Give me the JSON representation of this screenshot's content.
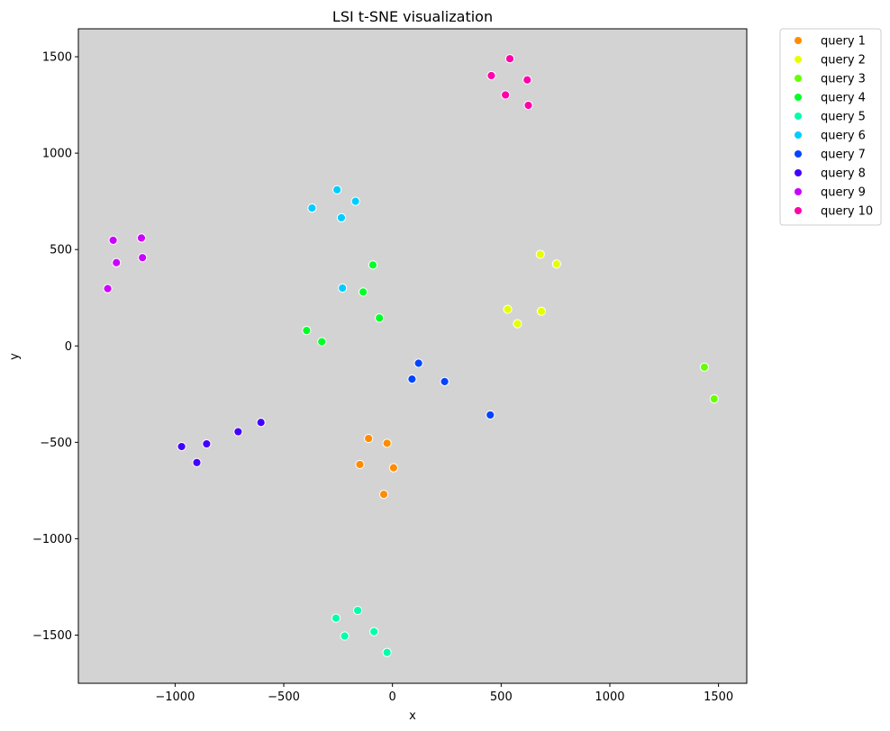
{
  "chart_data": {
    "type": "scatter",
    "title": "LSI t-SNE visualization",
    "xlabel": "x",
    "ylabel": "y",
    "xlim": [
      -1445,
      1630
    ],
    "ylim": [
      -1750,
      1645
    ],
    "xticks": [
      -1000,
      -500,
      0,
      500,
      1000,
      1500
    ],
    "yticks": [
      -1500,
      -1000,
      -500,
      0,
      500,
      1000,
      1500
    ],
    "xtick_labels": [
      "−1000",
      "−500",
      "0",
      "500",
      "1000",
      "1500"
    ],
    "ytick_labels": [
      "−1500",
      "−1000",
      "−500",
      "0",
      "500",
      "1000",
      "1500"
    ],
    "grid": false,
    "plot_background": "#d3d3d3",
    "legend_position": "outside-top-right",
    "series": [
      {
        "name": "query 1",
        "color": "#ff8c00",
        "points": [
          [
            -110,
            -480
          ],
          [
            -25,
            -505
          ],
          [
            -150,
            -615
          ],
          [
            5,
            -632
          ],
          [
            -40,
            -770
          ]
        ]
      },
      {
        "name": "query 2",
        "color": "#e6ff00",
        "points": [
          [
            680,
            475
          ],
          [
            755,
            425
          ],
          [
            530,
            190
          ],
          [
            685,
            180
          ],
          [
            575,
            115
          ]
        ]
      },
      {
        "name": "query 3",
        "color": "#66ff00",
        "points": [
          [
            1435,
            -110
          ],
          [
            1480,
            -275
          ]
        ]
      },
      {
        "name": "query 4",
        "color": "#00ff26",
        "points": [
          [
            -90,
            420
          ],
          [
            -135,
            280
          ],
          [
            -60,
            145
          ],
          [
            -395,
            80
          ],
          [
            -325,
            22
          ]
        ]
      },
      {
        "name": "query 5",
        "color": "#00ffaa",
        "points": [
          [
            -160,
            -1372
          ],
          [
            -260,
            -1412
          ],
          [
            -85,
            -1482
          ],
          [
            -220,
            -1505
          ],
          [
            -25,
            -1590
          ]
        ]
      },
      {
        "name": "query 6",
        "color": "#00ccff",
        "points": [
          [
            -255,
            810
          ],
          [
            -170,
            750
          ],
          [
            -370,
            715
          ],
          [
            -235,
            665
          ],
          [
            -230,
            300
          ]
        ]
      },
      {
        "name": "query 7",
        "color": "#0044ff",
        "points": [
          [
            120,
            -90
          ],
          [
            90,
            -172
          ],
          [
            240,
            -185
          ],
          [
            450,
            -358
          ]
        ]
      },
      {
        "name": "query 8",
        "color": "#4400ff",
        "points": [
          [
            -605,
            -397
          ],
          [
            -710,
            -445
          ],
          [
            -855,
            -508
          ],
          [
            -970,
            -522
          ],
          [
            -900,
            -605
          ]
        ]
      },
      {
        "name": "query 9",
        "color": "#cc00ff",
        "points": [
          [
            -1155,
            560
          ],
          [
            -1285,
            548
          ],
          [
            -1150,
            458
          ],
          [
            -1270,
            432
          ],
          [
            -1310,
            297
          ]
        ]
      },
      {
        "name": "query 10",
        "color": "#ff00aa",
        "points": [
          [
            540,
            1490
          ],
          [
            455,
            1402
          ],
          [
            620,
            1380
          ],
          [
            520,
            1302
          ],
          [
            625,
            1248
          ]
        ]
      }
    ]
  }
}
